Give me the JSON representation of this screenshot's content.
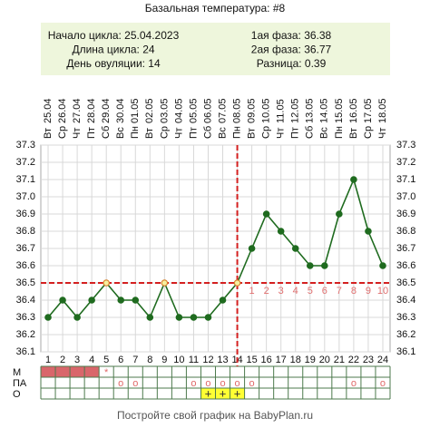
{
  "chart_data": {
    "type": "line",
    "title": "Базальная температура: #8",
    "info_left": [
      "Начало цикла: 25.04.2023",
      "Длина цикла: 24",
      "День овуляции: 14"
    ],
    "info_right": [
      "1ая фаза: 36.38",
      "2ая фаза: 36.77",
      "Разница: 0.39"
    ],
    "categories": [
      "25.04",
      "26.04",
      "27.04",
      "28.04",
      "29.04",
      "30.04",
      "01.05",
      "02.05",
      "03.05",
      "04.05",
      "05.05",
      "06.05",
      "07.05",
      "08.05",
      "09.05",
      "10.05",
      "11.05",
      "12.05",
      "13.05",
      "14.05",
      "15.05",
      "16.05",
      "17.05",
      "18.05"
    ],
    "weekdays": [
      "Вт",
      "Ср",
      "Чт",
      "Пт",
      "Сб",
      "Вс",
      "Пн",
      "Вт",
      "Ср",
      "Чт",
      "Пт",
      "Сб",
      "Вс",
      "Пн",
      "Вт",
      "Ср",
      "Чт",
      "Пт",
      "Сб",
      "Вс",
      "Пн",
      "Вт",
      "Ср",
      "Чт"
    ],
    "day_numbers": [
      1,
      2,
      3,
      4,
      5,
      6,
      7,
      8,
      9,
      10,
      11,
      12,
      13,
      14,
      15,
      16,
      17,
      18,
      19,
      20,
      21,
      22,
      23,
      24
    ],
    "values": [
      36.3,
      36.4,
      36.3,
      36.4,
      36.5,
      36.4,
      36.4,
      36.3,
      36.5,
      36.3,
      36.3,
      36.3,
      36.4,
      36.5,
      36.7,
      36.9,
      36.8,
      36.7,
      36.6,
      36.6,
      36.9,
      37.1,
      36.8,
      36.6
    ],
    "color": "#1f6b1f",
    "ylim": [
      36.1,
      37.3
    ],
    "yticks": [
      36.1,
      36.2,
      36.3,
      36.4,
      36.5,
      36.6,
      36.7,
      36.8,
      36.9,
      {
        "value": 37,
        "label": "37.0"
      },
      37.1,
      37.2,
      37.3
    ],
    "grid": true,
    "cover_line": 36.5,
    "ovulation_day": 14,
    "phase2_day_labels": [
      1,
      2,
      3,
      4,
      5,
      6,
      7,
      8,
      9,
      10
    ],
    "line_color": "#d42020",
    "rows": [
      {
        "label": "М",
        "fill": "#d9666b",
        "filled": [
          1,
          2,
          3,
          4
        ],
        "cells": [
          null,
          null,
          null,
          null,
          "*",
          null,
          null,
          null,
          null,
          null,
          null,
          null,
          null,
          null,
          null,
          null,
          null,
          null,
          null,
          null,
          null,
          null,
          null,
          null
        ]
      },
      {
        "label": "ПА",
        "cells": [
          null,
          null,
          null,
          null,
          null,
          "o",
          "o",
          null,
          null,
          null,
          "o",
          "o",
          "o",
          "o",
          "o",
          null,
          null,
          null,
          null,
          null,
          null,
          "o",
          null,
          "o"
        ]
      },
      {
        "label": "О",
        "fill": "#ffff33",
        "filled": [
          12,
          13,
          14
        ],
        "cells": [
          null,
          null,
          null,
          null,
          null,
          null,
          null,
          null,
          null,
          null,
          null,
          "+",
          "+",
          "+",
          null,
          null,
          null,
          null,
          null,
          null,
          null,
          null,
          null,
          null
        ]
      }
    ],
    "footer": "Постройте свой график на BabyPlan.ru"
  }
}
